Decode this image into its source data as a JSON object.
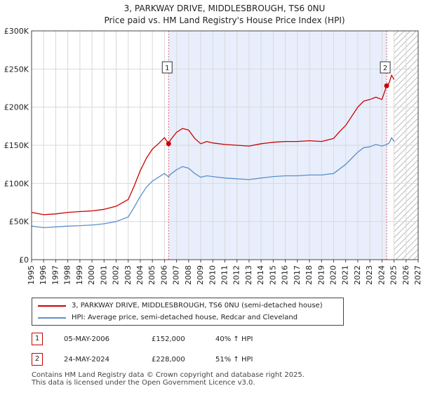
{
  "chart_data": {
    "type": "line",
    "title": "3, PARKWAY DRIVE, MIDDLESBROUGH, TS6 0NU",
    "subtitle": "Price paid vs. HM Land Registry's House Price Index (HPI)",
    "xlabel": "",
    "ylabel": "",
    "xlim": [
      1995,
      2027
    ],
    "ylim": [
      0,
      300000
    ],
    "y_ticks": [
      0,
      50000,
      100000,
      150000,
      200000,
      250000,
      300000
    ],
    "y_tick_labels": [
      "£0",
      "£50K",
      "£100K",
      "£150K",
      "£200K",
      "£250K",
      "£300K"
    ],
    "x_ticks": [
      "1995",
      "1996",
      "1997",
      "1998",
      "1999",
      "2000",
      "2001",
      "2002",
      "2003",
      "2004",
      "2005",
      "2006",
      "2007",
      "2008",
      "2009",
      "2010",
      "2011",
      "2012",
      "2013",
      "2014",
      "2015",
      "2016",
      "2017",
      "2018",
      "2019",
      "2020",
      "2021",
      "2022",
      "2023",
      "2024",
      "2025",
      "2026",
      "2027"
    ],
    "grid": true,
    "shaded_region": [
      2006.34,
      2024.39
    ],
    "future_hatch_start": 2025.0,
    "series": [
      {
        "name": "3, PARKWAY DRIVE, MIDDLESBROUGH, TS6 0NU (semi-detached house)",
        "color": "#cc0000",
        "x": [
          1995,
          1996,
          1997,
          1998,
          1999,
          2000,
          2001,
          2002,
          2003,
          2003.5,
          2004,
          2004.5,
          2005,
          2005.5,
          2006,
          2006.34,
          2006.5,
          2007,
          2007.5,
          2008,
          2008.5,
          2009,
          2009.5,
          2010,
          2011,
          2012,
          2013,
          2014,
          2015,
          2016,
          2017,
          2018,
          2019,
          2020,
          2020.5,
          2021,
          2021.5,
          2022,
          2022.5,
          2023,
          2023.5,
          2024,
          2024.39,
          2024.6,
          2024.8,
          2025.0
        ],
        "y": [
          62000,
          59000,
          60000,
          62000,
          63000,
          64000,
          66000,
          70000,
          79000,
          97000,
          117000,
          133000,
          145000,
          152000,
          160000,
          152000,
          157000,
          167000,
          172000,
          170000,
          159000,
          152000,
          155000,
          153000,
          151000,
          150000,
          149000,
          152000,
          154000,
          155000,
          155000,
          156000,
          155000,
          159000,
          168000,
          176000,
          188000,
          200000,
          208000,
          210000,
          213000,
          210000,
          228000,
          232000,
          242000,
          236000
        ]
      },
      {
        "name": "HPI: Average price, semi-detached house, Redcar and Cleveland",
        "color": "#5b8fcc",
        "x": [
          1995,
          1996,
          1997,
          1998,
          1999,
          2000,
          2001,
          2002,
          2003,
          2003.5,
          2004,
          2004.5,
          2005,
          2005.5,
          2006,
          2006.34,
          2006.5,
          2007,
          2007.5,
          2008,
          2008.5,
          2009,
          2009.5,
          2010,
          2011,
          2012,
          2013,
          2014,
          2015,
          2016,
          2017,
          2018,
          2019,
          2020,
          2020.5,
          2021,
          2021.5,
          2022,
          2022.5,
          2023,
          2023.5,
          2024,
          2024.39,
          2024.6,
          2024.8,
          2025.0
        ],
        "y": [
          44000,
          42000,
          43000,
          44000,
          44500,
          45500,
          47000,
          50000,
          56000,
          69000,
          83000,
          95000,
          103000,
          108000,
          113000,
          108500,
          112000,
          118000,
          122000,
          120000,
          113000,
          108000,
          110000,
          109000,
          107000,
          106000,
          105000,
          107000,
          109000,
          110000,
          110000,
          111000,
          111000,
          113000,
          119000,
          125000,
          133000,
          141000,
          147000,
          148000,
          151000,
          149000,
          151000,
          153000,
          160000,
          155000
        ]
      }
    ],
    "markers": [
      {
        "label": "1",
        "x": 2006.34,
        "y": 152000
      },
      {
        "label": "2",
        "x": 2024.39,
        "y": 228000
      }
    ]
  },
  "legend": {
    "items": [
      {
        "label": "3, PARKWAY DRIVE, MIDDLESBROUGH, TS6 0NU (semi-detached house)",
        "color": "#cc0000"
      },
      {
        "label": "HPI: Average price, semi-detached house, Redcar and Cleveland",
        "color": "#5b8fcc"
      }
    ]
  },
  "sales": [
    {
      "num": "1",
      "date": "05-MAY-2006",
      "price": "£152,000",
      "hpi": "40% ↑ HPI"
    },
    {
      "num": "2",
      "date": "24-MAY-2024",
      "price": "£228,000",
      "hpi": "51% ↑ HPI"
    }
  ],
  "footer": {
    "line1": "Contains HM Land Registry data © Crown copyright and database right 2025.",
    "line2": "This data is licensed under the Open Government Licence v3.0."
  }
}
